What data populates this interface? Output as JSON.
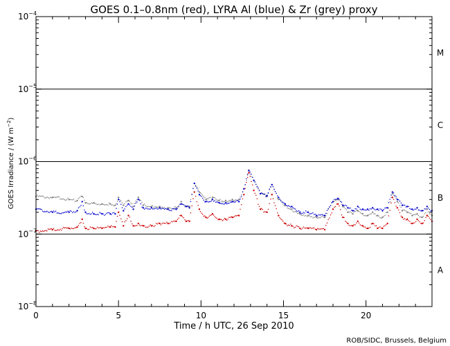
{
  "chart_data": {
    "type": "scatter",
    "title": "GOES 0.1–0.8nm (red), LYRA Al (blue) & Zr (grey) proxy",
    "xlabel": "Time / h UTC, 26 Sep 2010",
    "ylabel": "GOES Irradiance / (W m",
    "ylabel_exp": "−2",
    "ylabel_close": ")",
    "xlim": [
      0,
      24
    ],
    "ylim": [
      1e-08,
      0.0001
    ],
    "yscale": "log",
    "x_ticks": [
      0,
      5,
      10,
      15,
      20
    ],
    "x_tick_labels": [
      "0",
      "5",
      "10",
      "15",
      "20"
    ],
    "y_ticks": [
      {
        "value": 1e-08,
        "base": "10",
        "exp": "−8"
      },
      {
        "value": 1e-07,
        "base": "10",
        "exp": "−7"
      },
      {
        "value": 1e-06,
        "base": "10",
        "exp": "−6"
      },
      {
        "value": 1e-05,
        "base": "10",
        "exp": "−5"
      },
      {
        "value": 0.0001,
        "base": "10",
        "exp": "−4"
      }
    ],
    "flare_class_lines": [
      1e-07,
      1e-06,
      1e-05
    ],
    "flare_classes": [
      {
        "label": "A",
        "value": 3.16e-08
      },
      {
        "label": "B",
        "value": 3.16e-07
      },
      {
        "label": "C",
        "value": 3.16e-06
      },
      {
        "label": "M",
        "value": 3.16e-05
      }
    ],
    "series": [
      {
        "color": "#7f7f7f",
        "x": [
          0,
          1,
          2,
          2.5,
          2.8,
          3.0,
          3.5,
          4,
          4.5,
          4.8,
          5.0,
          5.3,
          5.6,
          5.9,
          6.2,
          6.5,
          7,
          7.5,
          8,
          8.5,
          8.8,
          9.1,
          9.3,
          9.6,
          9.9,
          10.3,
          10.7,
          11.1,
          11.5,
          11.9,
          12.3,
          12.6,
          12.9,
          13.2,
          13.6,
          14.0,
          14.3,
          14.7,
          15.1,
          15.5,
          16.0,
          16.5,
          17,
          17.5,
          18,
          18.3,
          18.6,
          18.9,
          19.2,
          19.5,
          19.8,
          20.1,
          20.4,
          20.7,
          21.0,
          21.3,
          21.6,
          21.9,
          22.2,
          22.5,
          22.8,
          23.1,
          23.4,
          23.7,
          24
        ],
        "values": [
          3.3e-07,
          3.2e-07,
          3e-07,
          2.9e-07,
          3.3e-07,
          2.7e-07,
          2.7e-07,
          2.6e-07,
          2.6e-07,
          2.5e-07,
          3.2e-07,
          2.5e-07,
          2.9e-07,
          2.4e-07,
          3.2e-07,
          2.5e-07,
          2.4e-07,
          2.4e-07,
          2.3e-07,
          2.3e-07,
          2.8e-07,
          2.4e-07,
          2.4e-07,
          5e-07,
          3.8e-07,
          3e-07,
          3.2e-07,
          2.9e-07,
          2.9e-07,
          3e-07,
          3e-07,
          4.2e-07,
          7.6e-07,
          5.5e-07,
          3.6e-07,
          3.3e-07,
          4.8e-07,
          3e-07,
          2.5e-07,
          2.2e-07,
          1.9e-07,
          1.8e-07,
          1.7e-07,
          1.7e-07,
          2.8e-07,
          3e-07,
          2.4e-07,
          2e-07,
          1.9e-07,
          2.1e-07,
          1.9e-07,
          1.8e-07,
          2e-07,
          1.8e-07,
          1.7e-07,
          2e-07,
          3.6e-07,
          2.8e-07,
          2.1e-07,
          2e-07,
          1.8e-07,
          1.9e-07,
          1.7e-07,
          2.2e-07,
          1.8e-07
        ]
      },
      {
        "color": "#0000cc",
        "x": [
          0,
          1,
          2,
          2.5,
          2.8,
          3.0,
          3.5,
          4,
          4.5,
          4.8,
          5.0,
          5.3,
          5.6,
          5.9,
          6.2,
          6.5,
          7,
          7.5,
          8,
          8.5,
          8.8,
          9.1,
          9.3,
          9.6,
          9.9,
          10.3,
          10.7,
          11.1,
          11.5,
          11.9,
          12.3,
          12.6,
          12.9,
          13.2,
          13.6,
          14.0,
          14.3,
          14.7,
          15.1,
          15.5,
          16.0,
          16.5,
          17,
          17.5,
          18,
          18.3,
          18.6,
          18.9,
          19.2,
          19.5,
          19.8,
          20.1,
          20.4,
          20.7,
          21.0,
          21.3,
          21.6,
          21.9,
          22.2,
          22.5,
          22.8,
          23.1,
          23.4,
          23.7,
          24
        ],
        "values": [
          2.2e-07,
          2e-07,
          2e-07,
          2.1e-07,
          2.8e-07,
          2e-07,
          1.9e-07,
          1.9e-07,
          1.9e-07,
          1.9e-07,
          3e-07,
          2.1e-07,
          2.6e-07,
          2.2e-07,
          3e-07,
          2.3e-07,
          2.3e-07,
          2.3e-07,
          2.2e-07,
          2.2e-07,
          2.6e-07,
          2.4e-07,
          2.3e-07,
          5e-07,
          3.5e-07,
          2.8e-07,
          3e-07,
          2.7e-07,
          2.7e-07,
          2.8e-07,
          2.8e-07,
          4.2e-07,
          7.5e-07,
          5.5e-07,
          3.6e-07,
          3.4e-07,
          4.8e-07,
          3.2e-07,
          2.6e-07,
          2.4e-07,
          2e-07,
          2e-07,
          1.8e-07,
          1.8e-07,
          2.8e-07,
          3.1e-07,
          2.5e-07,
          2.3e-07,
          2.1e-07,
          2.4e-07,
          2.2e-07,
          2.2e-07,
          2.3e-07,
          2.2e-07,
          2.1e-07,
          2.3e-07,
          3.8e-07,
          3e-07,
          2.5e-07,
          2.4e-07,
          2.2e-07,
          2.3e-07,
          2.1e-07,
          2.4e-07,
          2.1e-07
        ]
      },
      {
        "color": "#cc0000",
        "x": [
          0,
          1,
          2,
          2.5,
          2.8,
          3.0,
          3.5,
          4,
          4.5,
          4.8,
          5.0,
          5.3,
          5.6,
          5.9,
          6.2,
          6.5,
          7,
          7.5,
          8,
          8.5,
          8.8,
          9.1,
          9.3,
          9.6,
          9.9,
          10.3,
          10.7,
          11.1,
          11.5,
          11.9,
          12.3,
          12.6,
          12.9,
          13.2,
          13.6,
          14.0,
          14.3,
          14.7,
          15.1,
          15.5,
          16.0,
          16.5,
          17,
          17.5,
          18,
          18.3,
          18.6,
          18.9,
          19.2,
          19.5,
          19.8,
          20.1,
          20.4,
          20.7,
          21.0,
          21.3,
          21.6,
          21.9,
          22.2,
          22.5,
          22.8,
          23.1,
          23.4,
          23.7,
          24
        ],
        "values": [
          1.1e-07,
          1.15e-07,
          1.2e-07,
          1.25e-07,
          1.6e-07,
          1.2e-07,
          1.2e-07,
          1.2e-07,
          1.25e-07,
          1.25e-07,
          2e-07,
          1.3e-07,
          1.8e-07,
          1.3e-07,
          1.4e-07,
          1.3e-07,
          1.3e-07,
          1.4e-07,
          1.4e-07,
          1.5e-07,
          1.8e-07,
          1.5e-07,
          1.5e-07,
          3.8e-07,
          2.2e-07,
          1.7e-07,
          1.9e-07,
          1.6e-07,
          1.6e-07,
          1.7e-07,
          1.8e-07,
          3.5e-07,
          7e-07,
          4e-07,
          2.2e-07,
          2e-07,
          3.5e-07,
          1.8e-07,
          1.4e-07,
          1.3e-07,
          1.2e-07,
          1.2e-07,
          1.15e-07,
          1.15e-07,
          2.2e-07,
          2.6e-07,
          1.7e-07,
          1.4e-07,
          1.3e-07,
          1.5e-07,
          1.3e-07,
          1.2e-07,
          1.4e-07,
          1.2e-07,
          1.2e-07,
          1.4e-07,
          3.2e-07,
          2.3e-07,
          1.7e-07,
          1.6e-07,
          1.4e-07,
          1.6e-07,
          1.4e-07,
          1.8e-07,
          1.5e-07
        ]
      }
    ],
    "credit": "ROB/SIDC, Brussels, Belgium"
  }
}
